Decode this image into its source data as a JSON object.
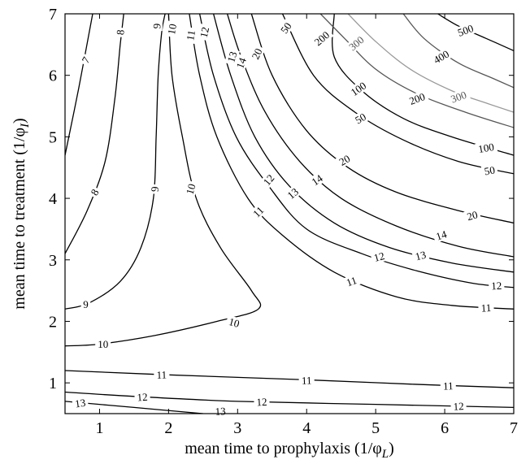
{
  "chart_data": {
    "type": "contour",
    "xlabel": "mean time to prophylaxis (1/φ",
    "xlabel_sub": "L",
    "ylabel": "mean time to treatment (1/φ",
    "ylabel_sub": "I",
    "xlim": [
      0.5,
      7
    ],
    "ylim": [
      0.5,
      7
    ],
    "xticks": [
      1,
      2,
      3,
      4,
      5,
      6,
      7
    ],
    "yticks": [
      1,
      2,
      3,
      4,
      5,
      6,
      7
    ],
    "grid": false,
    "levels": [
      {
        "level": "7",
        "color": "#000000",
        "points": [
          [
            0.5,
            4.7
          ],
          [
            0.7,
            5.8
          ],
          [
            0.9,
            7.0
          ]
        ],
        "labels": [
          {
            "text": "7",
            "x": 0.8,
            "y": 6.25,
            "angle": -60
          }
        ]
      },
      {
        "level": "8",
        "color": "#000000",
        "points": [
          [
            0.5,
            3.1
          ],
          [
            0.82,
            3.8
          ],
          [
            1.08,
            4.6
          ],
          [
            1.22,
            5.6
          ],
          [
            1.3,
            6.5
          ],
          [
            1.35,
            7.0
          ]
        ],
        "labels": [
          {
            "text": "8",
            "x": 0.93,
            "y": 4.1,
            "angle": -60
          },
          {
            "text": "8",
            "x": 1.3,
            "y": 6.7,
            "angle": -85
          }
        ]
      },
      {
        "level": "9",
        "color": "#000000",
        "points": [
          [
            0.5,
            2.2
          ],
          [
            0.85,
            2.3
          ],
          [
            1.3,
            2.65
          ],
          [
            1.6,
            3.2
          ],
          [
            1.78,
            4.0
          ],
          [
            1.82,
            5.0
          ],
          [
            1.85,
            6.0
          ],
          [
            1.9,
            6.7
          ],
          [
            1.95,
            7.0
          ]
        ],
        "labels": [
          {
            "text": "9",
            "x": 0.8,
            "y": 2.28,
            "angle": 0
          },
          {
            "text": "9",
            "x": 1.8,
            "y": 4.15,
            "angle": -88
          },
          {
            "text": "9",
            "x": 1.83,
            "y": 6.8,
            "angle": -88
          }
        ]
      },
      {
        "level": "10",
        "color": "#000000",
        "points": [
          [
            0.5,
            1.6
          ],
          [
            1.0,
            1.63
          ],
          [
            1.8,
            1.77
          ],
          [
            2.7,
            2.0
          ],
          [
            3.3,
            2.2
          ],
          [
            3.2,
            2.5
          ],
          [
            2.75,
            3.2
          ],
          [
            2.4,
            4.0
          ],
          [
            2.2,
            5.0
          ],
          [
            2.05,
            6.0
          ],
          [
            2.0,
            7.0
          ]
        ],
        "labels": [
          {
            "text": "10",
            "x": 1.05,
            "y": 1.63,
            "angle": 0
          },
          {
            "text": "10",
            "x": 2.95,
            "y": 1.98,
            "angle": 15
          },
          {
            "text": "10",
            "x": 2.32,
            "y": 4.15,
            "angle": -75
          },
          {
            "text": "10",
            "x": 2.05,
            "y": 6.75,
            "angle": -80
          }
        ]
      },
      {
        "level": "11",
        "color": "#000000",
        "points": [
          [
            0.5,
            1.2
          ],
          [
            2.0,
            1.13
          ],
          [
            4.0,
            1.05
          ],
          [
            5.5,
            0.98
          ],
          [
            7.0,
            0.92
          ]
        ],
        "labels": [
          {
            "text": "11",
            "x": 1.9,
            "y": 1.13,
            "angle": -2
          },
          {
            "text": "11",
            "x": 4.0,
            "y": 1.04,
            "angle": -2
          },
          {
            "text": "11",
            "x": 6.05,
            "y": 0.95,
            "angle": -2
          }
        ]
      },
      {
        "level": "11",
        "color": "#000000",
        "points": [
          [
            2.3,
            7.0
          ],
          [
            2.45,
            6.0
          ],
          [
            2.7,
            5.0
          ],
          [
            3.15,
            4.0
          ],
          [
            3.65,
            3.4
          ],
          [
            4.4,
            2.8
          ],
          [
            5.3,
            2.4
          ],
          [
            6.1,
            2.26
          ],
          [
            7.0,
            2.2
          ]
        ],
        "labels": [
          {
            "text": "11",
            "x": 2.32,
            "y": 6.65,
            "angle": -80
          },
          {
            "text": "11",
            "x": 3.3,
            "y": 3.78,
            "angle": -45
          },
          {
            "text": "11",
            "x": 4.65,
            "y": 2.65,
            "angle": -20
          },
          {
            "text": "11",
            "x": 6.6,
            "y": 2.22,
            "angle": -3
          }
        ]
      },
      {
        "level": "12",
        "color": "#000000",
        "points": [
          [
            0.5,
            0.85
          ],
          [
            1.5,
            0.78
          ],
          [
            3.0,
            0.7
          ],
          [
            5.0,
            0.65
          ],
          [
            7.0,
            0.6
          ]
        ],
        "labels": [
          {
            "text": "12",
            "x": 1.62,
            "y": 0.77,
            "angle": -4
          },
          {
            "text": "12",
            "x": 3.35,
            "y": 0.69,
            "angle": -3
          },
          {
            "text": "12",
            "x": 6.2,
            "y": 0.62,
            "angle": -3
          }
        ]
      },
      {
        "level": "12",
        "color": "#000000",
        "points": [
          [
            2.45,
            7.0
          ],
          [
            2.65,
            6.0
          ],
          [
            2.98,
            5.0
          ],
          [
            3.45,
            4.2
          ],
          [
            4.0,
            3.5
          ],
          [
            4.8,
            3.1
          ],
          [
            5.6,
            2.82
          ],
          [
            6.4,
            2.62
          ],
          [
            7.0,
            2.55
          ]
        ],
        "labels": [
          {
            "text": "12",
            "x": 2.52,
            "y": 6.7,
            "angle": -78
          },
          {
            "text": "12",
            "x": 3.45,
            "y": 4.3,
            "angle": -50
          },
          {
            "text": "12",
            "x": 5.05,
            "y": 3.05,
            "angle": -15
          },
          {
            "text": "12",
            "x": 6.75,
            "y": 2.58,
            "angle": -3
          }
        ]
      },
      {
        "level": "13",
        "color": "#000000",
        "points": [
          [
            0.5,
            0.7
          ],
          [
            1.5,
            0.6
          ],
          [
            2.5,
            0.5
          ]
        ],
        "labels": [
          {
            "text": "13",
            "x": 0.72,
            "y": 0.67,
            "angle": -8
          },
          {
            "text": "13",
            "x": 2.75,
            "y": 0.54,
            "angle": -3
          }
        ]
      },
      {
        "level": "13",
        "color": "#000000",
        "points": [
          [
            2.65,
            7.0
          ],
          [
            2.9,
            6.0
          ],
          [
            3.25,
            5.0
          ],
          [
            3.75,
            4.2
          ],
          [
            4.4,
            3.6
          ],
          [
            5.2,
            3.2
          ],
          [
            6.1,
            2.95
          ],
          [
            7.0,
            2.8
          ]
        ],
        "labels": [
          {
            "text": "13",
            "x": 2.92,
            "y": 6.3,
            "angle": -72
          },
          {
            "text": "13",
            "x": 3.8,
            "y": 4.08,
            "angle": -40
          },
          {
            "text": "13",
            "x": 5.65,
            "y": 3.07,
            "angle": -15
          }
        ]
      },
      {
        "level": "14",
        "color": "#000000",
        "points": [
          [
            2.85,
            7.0
          ],
          [
            3.05,
            6.3
          ],
          [
            3.4,
            5.4
          ],
          [
            3.9,
            4.6
          ],
          [
            4.5,
            4.0
          ],
          [
            5.3,
            3.55
          ],
          [
            6.2,
            3.22
          ],
          [
            7.0,
            3.05
          ]
        ],
        "labels": [
          {
            "text": "14",
            "x": 3.05,
            "y": 6.2,
            "angle": -70
          },
          {
            "text": "14",
            "x": 4.15,
            "y": 4.3,
            "angle": -35
          },
          {
            "text": "14",
            "x": 5.95,
            "y": 3.4,
            "angle": -18
          }
        ]
      },
      {
        "level": "20",
        "color": "#000000",
        "points": [
          [
            3.2,
            7.0
          ],
          [
            3.5,
            6.0
          ],
          [
            4.0,
            5.1
          ],
          [
            4.6,
            4.5
          ],
          [
            5.3,
            4.1
          ],
          [
            6.2,
            3.8
          ],
          [
            7.0,
            3.6
          ]
        ],
        "labels": [
          {
            "text": "20",
            "x": 3.28,
            "y": 6.35,
            "angle": -65
          },
          {
            "text": "20",
            "x": 4.55,
            "y": 4.62,
            "angle": -30
          },
          {
            "text": "20",
            "x": 6.4,
            "y": 3.72,
            "angle": -15
          }
        ]
      },
      {
        "level": "50",
        "color": "#000000",
        "points": [
          [
            3.65,
            7.0
          ],
          [
            4.1,
            6.0
          ],
          [
            4.7,
            5.4
          ],
          [
            5.4,
            4.95
          ],
          [
            6.2,
            4.6
          ],
          [
            7.0,
            4.4
          ]
        ],
        "labels": [
          {
            "text": "50",
            "x": 3.7,
            "y": 6.77,
            "angle": -55
          },
          {
            "text": "50",
            "x": 4.78,
            "y": 5.3,
            "angle": -30
          },
          {
            "text": "50",
            "x": 6.65,
            "y": 4.45,
            "angle": -10
          }
        ]
      },
      {
        "level": "100",
        "color": "#000000",
        "points": [
          [
            4.4,
            7.0
          ],
          [
            4.4,
            6.3
          ],
          [
            4.8,
            5.75
          ],
          [
            5.4,
            5.3
          ],
          [
            6.1,
            5.0
          ],
          [
            7.0,
            4.7
          ]
        ],
        "labels": [
          {
            "text": "100",
            "x": 4.75,
            "y": 5.78,
            "angle": -35
          },
          {
            "text": "100",
            "x": 6.6,
            "y": 4.82,
            "angle": -10
          }
        ]
      },
      {
        "level": "200",
        "color": "#555555",
        "points": [
          [
            4.2,
            7.0
          ],
          [
            4.55,
            6.6
          ],
          [
            5.0,
            6.1
          ],
          [
            5.6,
            5.7
          ],
          [
            6.3,
            5.4
          ],
          [
            7.0,
            5.15
          ]
        ],
        "labels": [
          {
            "text": "200",
            "x": 4.22,
            "y": 6.6,
            "angle": -40
          },
          {
            "text": "200",
            "x": 5.6,
            "y": 5.62,
            "angle": -20
          }
        ]
      },
      {
        "level": "300",
        "color": "#999999",
        "points": [
          [
            4.6,
            7.0
          ],
          [
            5.0,
            6.55
          ],
          [
            5.5,
            6.1
          ],
          [
            6.1,
            5.75
          ],
          [
            6.6,
            5.55
          ],
          [
            7.0,
            5.4
          ]
        ],
        "labels": [
          {
            "text": "300",
            "x": 4.72,
            "y": 6.52,
            "angle": -40
          },
          {
            "text": "300",
            "x": 6.2,
            "y": 5.65,
            "angle": -20
          }
        ]
      },
      {
        "level": "400",
        "color": "#555555",
        "points": [
          [
            5.4,
            7.0
          ],
          [
            5.7,
            6.6
          ],
          [
            6.2,
            6.2
          ],
          [
            6.7,
            5.95
          ],
          [
            7.0,
            5.8
          ]
        ],
        "labels": [
          {
            "text": "400",
            "x": 5.95,
            "y": 6.3,
            "angle": -30
          }
        ]
      },
      {
        "level": "500",
        "color": "#000000",
        "points": [
          [
            5.9,
            7.0
          ],
          [
            6.2,
            6.8
          ],
          [
            6.6,
            6.6
          ],
          [
            7.0,
            6.4
          ]
        ],
        "labels": [
          {
            "text": "500",
            "x": 6.3,
            "y": 6.73,
            "angle": -20
          }
        ]
      }
    ]
  }
}
